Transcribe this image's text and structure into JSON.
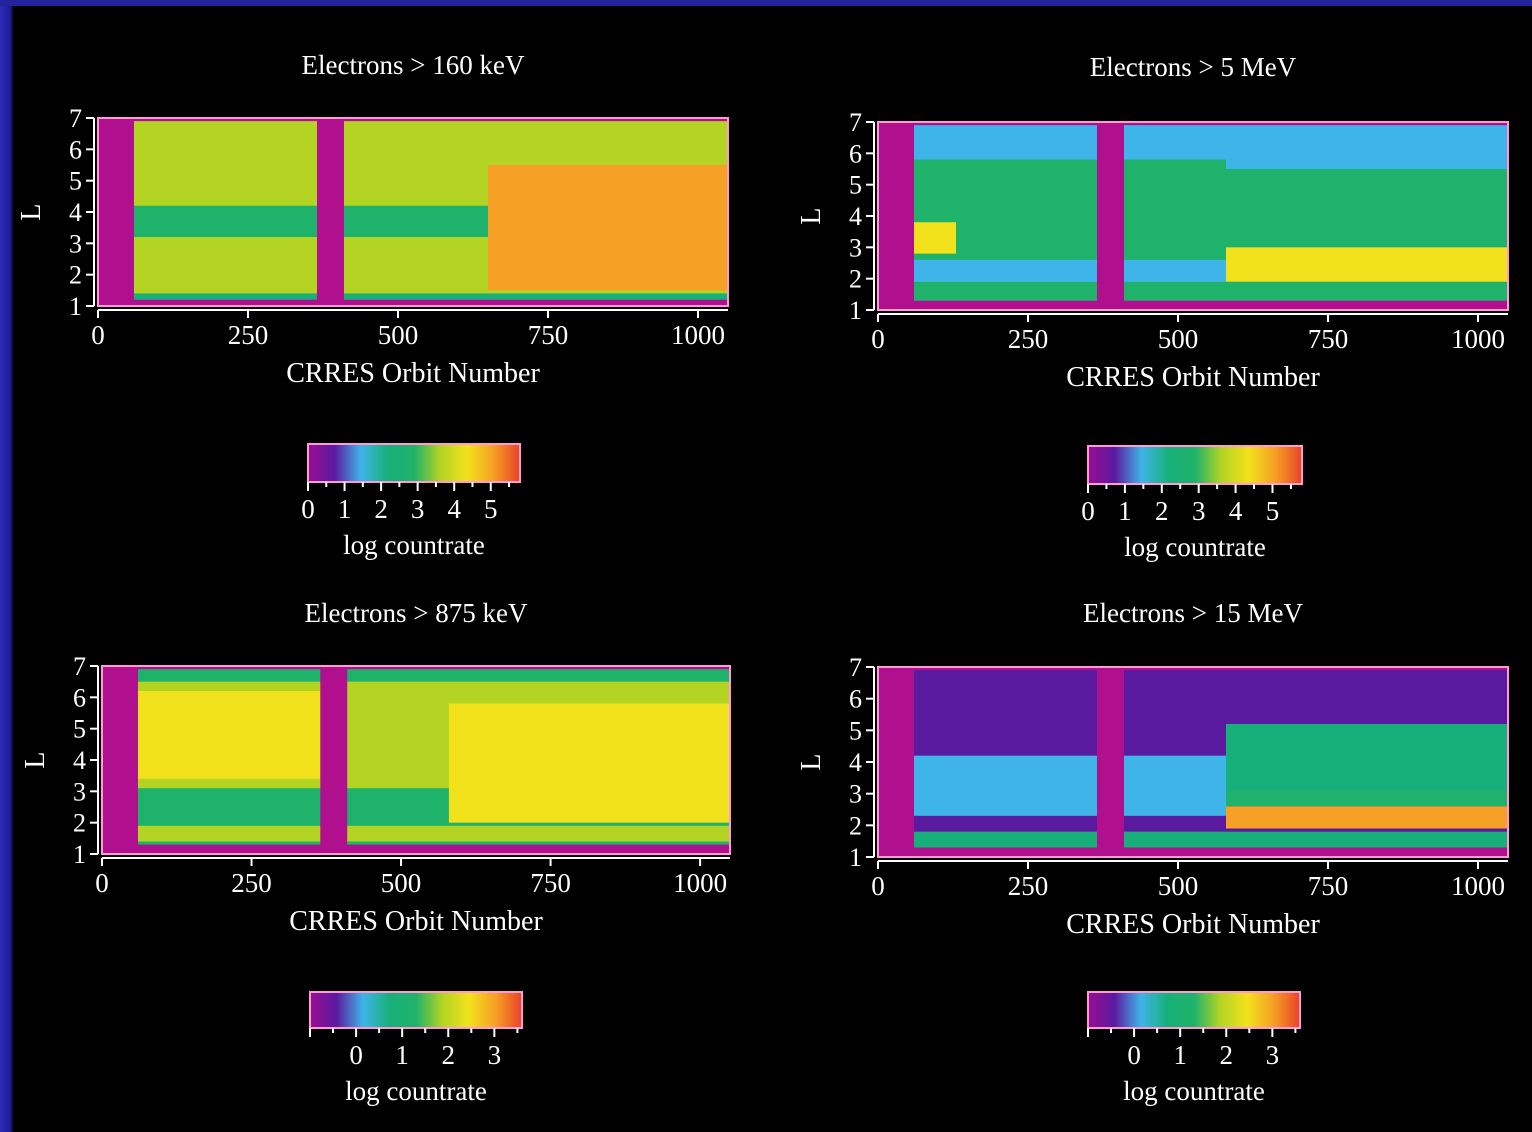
{
  "colors": {
    "background": "#000000",
    "slide_border": "#1e1e9a",
    "frame": "#ff9ad6",
    "gap_fill": "#b0108e",
    "colormap": [
      "#9a0d92",
      "#5a1aa0",
      "#3fb4e8",
      "#18b07a",
      "#1fb26a",
      "#b4d424",
      "#f2e21c",
      "#f6a025",
      "#e8422a"
    ]
  },
  "chart_data": [
    {
      "type": "heatmap",
      "title": "Electrons > 160 keV",
      "xlabel": "CRRES Orbit Number",
      "ylabel": "L",
      "xlim": [
        0,
        1050
      ],
      "ylim": [
        1,
        7
      ],
      "xticks": [
        "0",
        "250",
        "500",
        "750",
        "1000"
      ],
      "yticks": [
        "1",
        "2",
        "3",
        "4",
        "5",
        "6",
        "7"
      ],
      "colorbar": {
        "label": "log countrate",
        "range": [
          0,
          5.8
        ],
        "ticks": [
          "0",
          "1",
          "2",
          "3",
          "4",
          "5"
        ]
      },
      "data_gaps": [
        [
          0,
          60
        ],
        [
          365,
          410
        ]
      ],
      "bands": [
        {
          "x": [
            60,
            1050
          ],
          "l": [
            1.4,
            6.9
          ],
          "value": 3.8
        },
        {
          "x": [
            60,
            365
          ],
          "l": [
            3.2,
            4.2
          ],
          "value": 2.8
        },
        {
          "x": [
            410,
            650
          ],
          "l": [
            3.2,
            4.2
          ],
          "value": 2.8
        },
        {
          "x": [
            650,
            1050
          ],
          "l": [
            1.5,
            5.5
          ],
          "value": 4.8
        },
        {
          "x": [
            60,
            1050
          ],
          "l": [
            1.2,
            1.4
          ],
          "value": 2.2
        }
      ]
    },
    {
      "type": "heatmap",
      "title": "Electrons > 5 MeV",
      "xlabel": "CRRES Orbit Number",
      "ylabel": "L",
      "xlim": [
        0,
        1050
      ],
      "ylim": [
        1,
        7
      ],
      "xticks": [
        "0",
        "250",
        "500",
        "750",
        "1000"
      ],
      "yticks": [
        "1",
        "2",
        "3",
        "4",
        "5",
        "6",
        "7"
      ],
      "colorbar": {
        "label": "log countrate",
        "range": [
          0,
          5.8
        ],
        "ticks": [
          "0",
          "1",
          "2",
          "3",
          "4",
          "5"
        ]
      },
      "data_gaps": [
        [
          0,
          60
        ],
        [
          365,
          410
        ]
      ],
      "bands": [
        {
          "x": [
            60,
            1050
          ],
          "l": [
            1.3,
            6.9
          ],
          "value": 1.6
        },
        {
          "x": [
            60,
            580
          ],
          "l": [
            2.6,
            5.8
          ],
          "value": 2.7
        },
        {
          "x": [
            60,
            130
          ],
          "l": [
            2.8,
            3.8
          ],
          "value": 4.2
        },
        {
          "x": [
            580,
            1050
          ],
          "l": [
            2.9,
            5.5
          ],
          "value": 3.1
        },
        {
          "x": [
            580,
            1050
          ],
          "l": [
            1.9,
            3.0
          ],
          "value": 4.6
        },
        {
          "x": [
            60,
            1050
          ],
          "l": [
            1.3,
            1.9
          ],
          "value": 2.6
        }
      ]
    },
    {
      "type": "heatmap",
      "title": "Electrons > 875 keV",
      "xlabel": "CRRES Orbit Number",
      "ylabel": "L",
      "xlim": [
        0,
        1050
      ],
      "ylim": [
        1,
        7
      ],
      "xticks": [
        "0",
        "250",
        "500",
        "750",
        "1000"
      ],
      "yticks": [
        "1",
        "2",
        "3",
        "4",
        "5",
        "6",
        "7"
      ],
      "colorbar": {
        "label": "log countrate",
        "range": [
          -1,
          3.6
        ],
        "ticks": [
          "0",
          "1",
          "2",
          "3"
        ]
      },
      "data_gaps": [
        [
          0,
          60
        ],
        [
          365,
          410
        ]
      ],
      "bands": [
        {
          "x": [
            60,
            1050
          ],
          "l": [
            1.3,
            6.9
          ],
          "value": 1.3
        },
        {
          "x": [
            60,
            1050
          ],
          "l": [
            3.1,
            6.5
          ],
          "value": 1.7
        },
        {
          "x": [
            60,
            365
          ],
          "l": [
            3.4,
            6.2
          ],
          "value": 2.2
        },
        {
          "x": [
            580,
            1050
          ],
          "l": [
            2.0,
            5.8
          ],
          "value": 2.4
        },
        {
          "x": [
            60,
            1050
          ],
          "l": [
            1.4,
            1.9
          ],
          "value": 2.0
        }
      ]
    },
    {
      "type": "heatmap",
      "title": "Electrons > 15 MeV",
      "xlabel": "CRRES Orbit Number",
      "ylabel": "L",
      "xlim": [
        0,
        1050
      ],
      "ylim": [
        1,
        7
      ],
      "xticks": [
        "0",
        "250",
        "500",
        "750",
        "1000"
      ],
      "yticks": [
        "1",
        "2",
        "3",
        "4",
        "5",
        "6",
        "7"
      ],
      "colorbar": {
        "label": "log countrate",
        "range": [
          -1,
          3.6
        ],
        "ticks": [
          "0",
          "1",
          "2",
          "3"
        ]
      },
      "data_gaps": [
        [
          0,
          60
        ],
        [
          365,
          410
        ]
      ],
      "bands": [
        {
          "x": [
            60,
            1050
          ],
          "l": [
            1.3,
            6.9
          ],
          "value": -0.6
        },
        {
          "x": [
            60,
            580
          ],
          "l": [
            2.3,
            4.2
          ],
          "value": 0.4
        },
        {
          "x": [
            580,
            1050
          ],
          "l": [
            3.0,
            5.2
          ],
          "value": 0.6
        },
        {
          "x": [
            580,
            1050
          ],
          "l": [
            2.6,
            3.1
          ],
          "value": 1.4
        },
        {
          "x": [
            580,
            1050
          ],
          "l": [
            1.9,
            2.6
          ],
          "value": 2.8
        },
        {
          "x": [
            60,
            1050
          ],
          "l": [
            1.3,
            1.8
          ],
          "value": 1.0
        }
      ]
    }
  ]
}
